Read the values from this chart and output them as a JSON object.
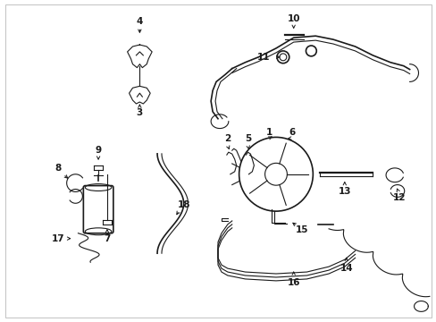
{
  "background_color": "#ffffff",
  "line_color": "#1a1a1a",
  "fig_width": 4.89,
  "fig_height": 3.6,
  "dpi": 100,
  "border_color": "#cccccc"
}
